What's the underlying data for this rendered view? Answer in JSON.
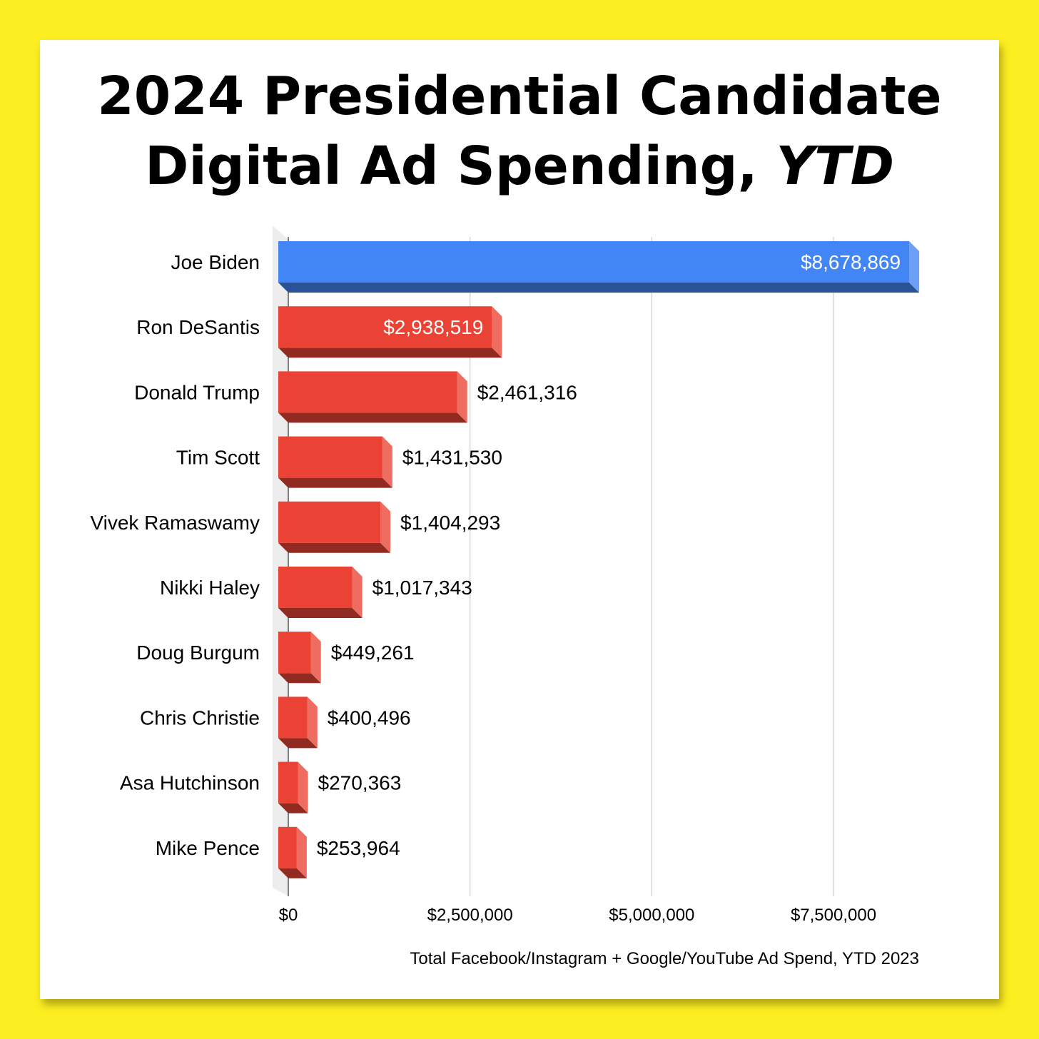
{
  "chart_data": {
    "type": "bar",
    "orientation": "horizontal",
    "title": {
      "line1": "2024 Presidential Candidate",
      "line2_main": "Digital Ad Spending, ",
      "line2_italic": "YTD"
    },
    "categories": [
      "Joe Biden",
      "Ron DeSantis",
      "Donald Trump",
      "Tim Scott",
      "Vivek Ramaswamy",
      "Nikki Haley",
      "Doug Burgum",
      "Chris Christie",
      "Asa Hutchinson",
      "Mike Pence"
    ],
    "values": [
      8678869,
      2938519,
      2461316,
      1431530,
      1404293,
      1017343,
      449261,
      400496,
      270363,
      253964
    ],
    "value_labels": [
      "$8,678,869",
      "$2,938,519",
      "$2,461,316",
      "$1,431,530",
      "$1,404,293",
      "$1,017,343",
      "$449,261",
      "$400,496",
      "$270,363",
      "$253,964"
    ],
    "bar_colors": [
      "#4285f4",
      "#ea4335",
      "#ea4335",
      "#ea4335",
      "#ea4335",
      "#ea4335",
      "#ea4335",
      "#ea4335",
      "#ea4335",
      "#ea4335"
    ],
    "xlim": [
      0,
      8678869
    ],
    "x_ticks": [
      0,
      2500000,
      5000000,
      7500000
    ],
    "x_tick_labels": [
      "$0",
      "$2,500,000",
      "$5,000,000",
      "$7,500,000"
    ],
    "grid": true,
    "caption": "Total Facebook/Instagram + Google/YouTube Ad Spend, YTD 2023"
  },
  "colors": {
    "background": "#fdee21",
    "card": "#ffffff",
    "biden": "#4285f4",
    "others": "#ea4335"
  }
}
